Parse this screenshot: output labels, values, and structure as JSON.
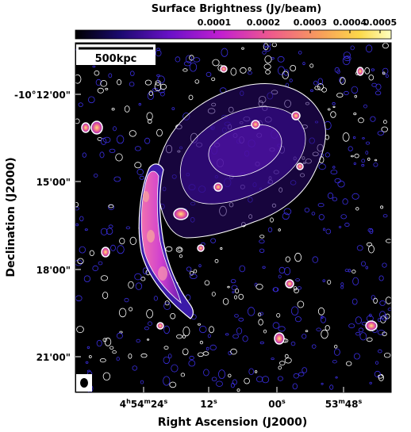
{
  "chart_data": {
    "type": "heatmap",
    "title": "",
    "colorbar": {
      "label": "Surface Brightness (Jy/beam)",
      "ticks": [
        "0.0001",
        "0.0002",
        "0.0003",
        "0.0004",
        "0.0005"
      ],
      "tick_values": [
        0.0001,
        0.0002,
        0.0003,
        0.0004,
        0.0005
      ],
      "range": [
        0,
        0.0005
      ],
      "colormap": [
        "#000000",
        "#1a0a6e",
        "#6a11c8",
        "#c21fd0",
        "#ef5a8c",
        "#f8a05a",
        "#fcd94a",
        "#ffffc0"
      ],
      "placement": "top"
    },
    "xlabel": "Right Ascension (J2000)",
    "ylabel": "Declination (J2000)",
    "x_ticks": [
      {
        "label_parts": [
          "4",
          "h",
          "54",
          "m",
          "24",
          "s"
        ],
        "value": "4h54m24s"
      },
      {
        "label_parts": [
          "12",
          "s"
        ],
        "value": "4h54m12s"
      },
      {
        "label_parts": [
          "00",
          "s"
        ],
        "value": "4h54m00s"
      },
      {
        "label_parts": [
          "53",
          "m",
          "48",
          "s"
        ],
        "value": "4h53m48s"
      }
    ],
    "y_ticks": [
      {
        "label": "-10°12'00\"",
        "value": "-10d12m00s"
      },
      {
        "label": "15'00\"",
        "value": "-10d15m00s"
      },
      {
        "label": "18'00\"",
        "value": "-10d18m00s"
      },
      {
        "label": "21'00\"",
        "value": "-10d21m00s"
      }
    ],
    "scale_bar": {
      "label": "500kpc"
    },
    "beam": "ellipse-marker",
    "contours": {
      "colors": [
        "#ffffff",
        "#3a2ee0"
      ]
    },
    "features": [
      {
        "name": "relic",
        "description_color": "#e040c0"
      },
      {
        "name": "diffuse-emission",
        "description_color": "#4a1aa0"
      }
    ]
  }
}
